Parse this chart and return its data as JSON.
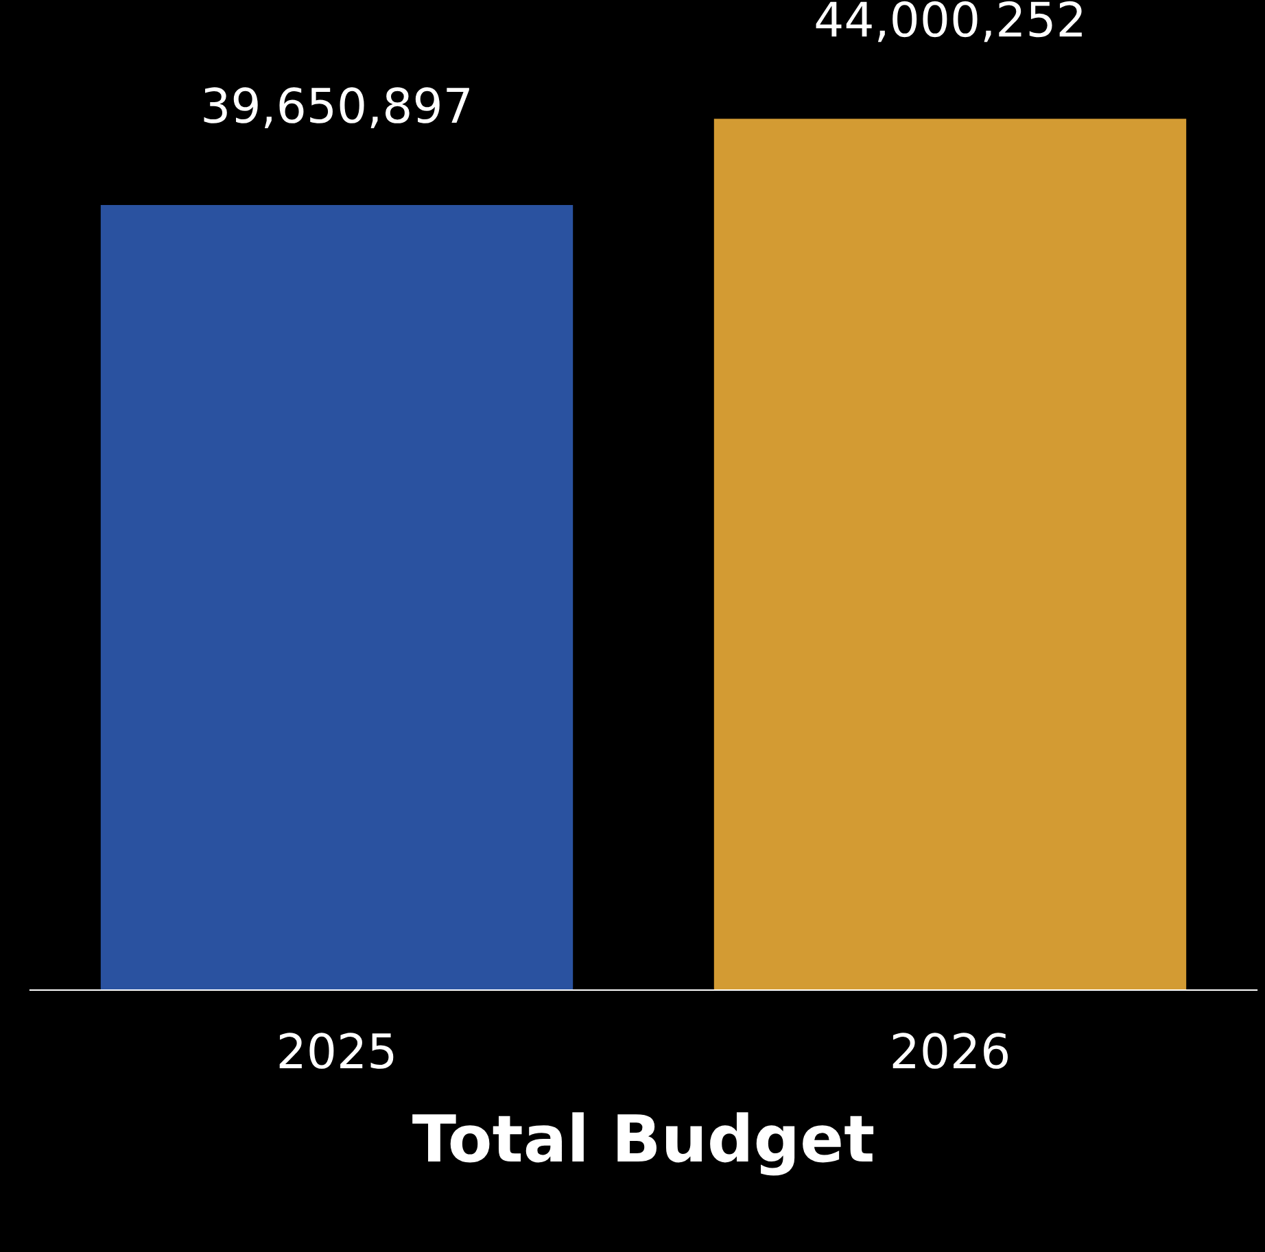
{
  "chart_data": {
    "type": "bar",
    "xlabel": "Total Budget",
    "categories": [
      "2025",
      "2026"
    ],
    "values": [
      39650897,
      44000252
    ],
    "colors": [
      "#2a52a0",
      "#d39b33"
    ],
    "value_labels": [
      "39,650,897",
      "44,000,252"
    ],
    "ylim": [
      0,
      50000000
    ],
    "tick_labels": "x",
    "grid": false,
    "legend": false
  }
}
